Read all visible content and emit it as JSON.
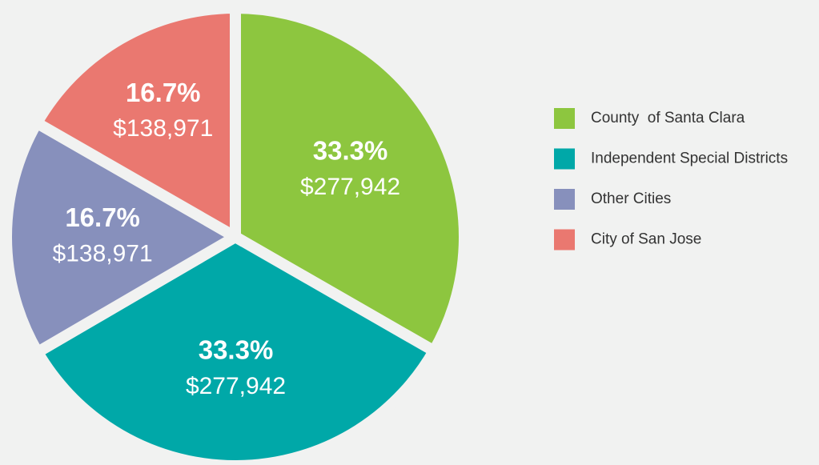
{
  "chart_data": {
    "type": "pie",
    "categories": [
      "County  of Santa Clara",
      "Independent Special Districts",
      "Other Cities",
      "City of San Jose"
    ],
    "values": [
      33.3,
      33.3,
      16.7,
      16.7
    ],
    "value_labels": [
      "33.3%",
      "33.3%",
      "16.7%",
      "16.7%"
    ],
    "amounts": [
      277942,
      277942,
      138971,
      138971
    ],
    "amount_labels": [
      "$277,942",
      "$277,942",
      "$138,971",
      "$138,971"
    ],
    "colors": [
      "#8dc63f",
      "#00a8a8",
      "#8790bc",
      "#ea7870"
    ],
    "legend": "right"
  }
}
